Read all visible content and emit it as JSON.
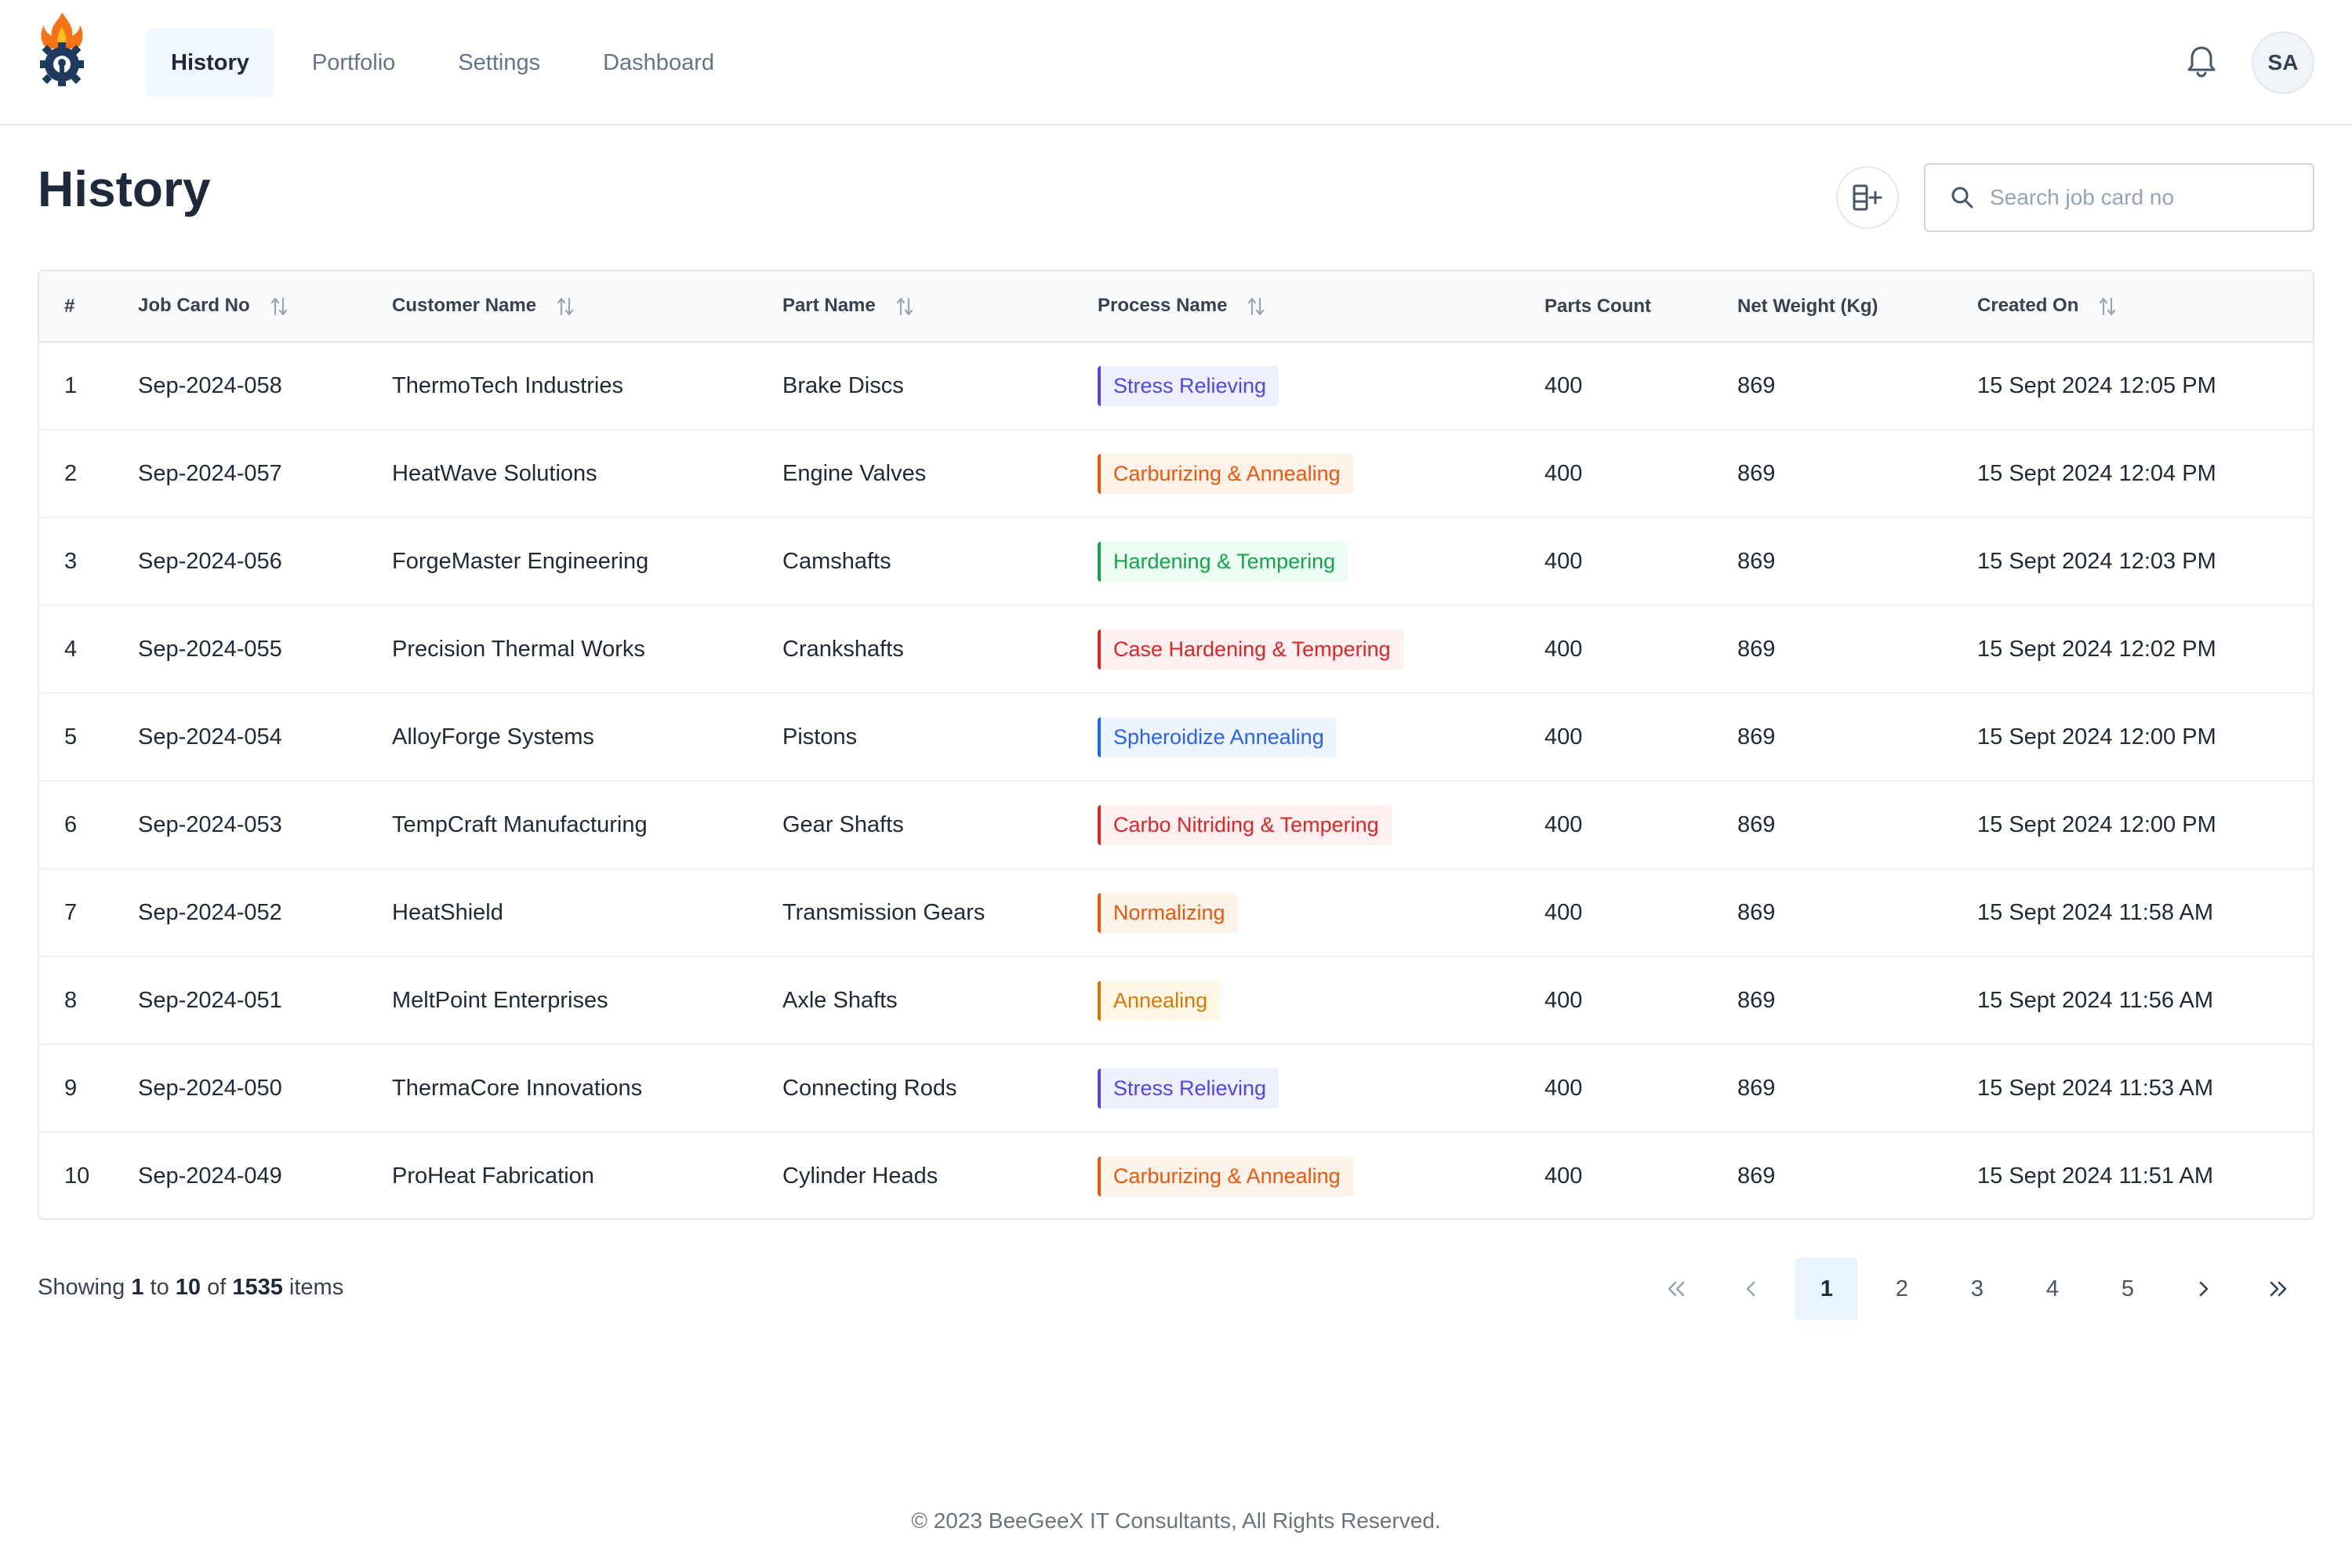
{
  "nav": {
    "items": [
      {
        "label": "History",
        "active": true
      },
      {
        "label": "Portfolio",
        "active": false
      },
      {
        "label": "Settings",
        "active": false
      },
      {
        "label": "Dashboard",
        "active": false
      }
    ]
  },
  "user": {
    "initials": "SA"
  },
  "page": {
    "title": "History"
  },
  "search": {
    "placeholder": "Search job card no"
  },
  "table": {
    "columns": [
      "#",
      "Job Card No",
      "Customer Name",
      "Part Name",
      "Process Name",
      "Parts Count",
      "Net Weight (Kg)",
      "Created On"
    ],
    "rows": [
      {
        "num": "1",
        "job": "Sep-2024-058",
        "customer": "ThermoTech Industries",
        "part": "Brake Discs",
        "process": "Stress Relieving",
        "process_color": "blue",
        "count": "400",
        "weight": "869",
        "created": "15 Sept 2024 12:05 PM"
      },
      {
        "num": "2",
        "job": "Sep-2024-057",
        "customer": "HeatWave Solutions",
        "part": "Engine Valves",
        "process": "Carburizing & Annealing",
        "process_color": "orange",
        "count": "400",
        "weight": "869",
        "created": "15 Sept 2024 12:04 PM"
      },
      {
        "num": "3",
        "job": "Sep-2024-056",
        "customer": "ForgeMaster Engineering",
        "part": "Camshafts",
        "process": "Hardening & Tempering",
        "process_color": "green",
        "count": "400",
        "weight": "869",
        "created": "15 Sept 2024 12:03 PM"
      },
      {
        "num": "4",
        "job": "Sep-2024-055",
        "customer": "Precision Thermal Works",
        "part": "Crankshafts",
        "process": "Case Hardening & Tempering",
        "process_color": "red",
        "count": "400",
        "weight": "869",
        "created": "15 Sept 2024 12:02 PM"
      },
      {
        "num": "5",
        "job": "Sep-2024-054",
        "customer": "AlloyForge Systems",
        "part": "Pistons",
        "process": "Spheroidize Annealing",
        "process_color": "sky",
        "count": "400",
        "weight": "869",
        "created": "15 Sept 2024 12:00 PM"
      },
      {
        "num": "6",
        "job": "Sep-2024-053",
        "customer": "TempCraft Manufacturing",
        "part": "Gear Shafts",
        "process": "Carbo Nitriding & Tempering",
        "process_color": "red",
        "count": "400",
        "weight": "869",
        "created": "15 Sept 2024 12:00 PM"
      },
      {
        "num": "7",
        "job": "Sep-2024-052",
        "customer": "HeatShield",
        "part": "Transmission Gears",
        "process": "Normalizing",
        "process_color": "orange",
        "count": "400",
        "weight": "869",
        "created": "15 Sept 2024 11:58 AM"
      },
      {
        "num": "8",
        "job": "Sep-2024-051",
        "customer": "MeltPoint Enterprises",
        "part": "Axle Shafts",
        "process": "Annealing",
        "process_color": "amber",
        "count": "400",
        "weight": "869",
        "created": "15 Sept 2024 11:56 AM"
      },
      {
        "num": "9",
        "job": "Sep-2024-050",
        "customer": "ThermaCore Innovations",
        "part": "Connecting Rods",
        "process": "Stress Relieving",
        "process_color": "blue",
        "count": "400",
        "weight": "869",
        "created": "15 Sept 2024 11:53 AM"
      },
      {
        "num": "10",
        "job": "Sep-2024-049",
        "customer": "ProHeat Fabrication",
        "part": "Cylinder Heads",
        "process": "Carburizing & Annealing",
        "process_color": "orange",
        "count": "400",
        "weight": "869",
        "created": "15 Sept 2024 11:51 AM"
      }
    ]
  },
  "pagination": {
    "showing_prefix": "Showing",
    "from": "1",
    "to_word": "to",
    "to": "10",
    "of_word": "of",
    "total": "1535",
    "items_word": "items",
    "pages": [
      "1",
      "2",
      "3",
      "4",
      "5"
    ],
    "current": "1",
    "first_icon": "double-chevron-left-icon",
    "prev_icon": "chevron-left-icon",
    "next_icon": "chevron-right-icon",
    "last_icon": "double-chevron-right-icon"
  },
  "footer": {
    "copyright": "© 2023 BeeGeeX IT Consultants, All Rights Reserved."
  },
  "colors": {
    "accent_bg": "#f0f7ff",
    "brand_orange": "#f97316",
    "brand_navy": "#1e3a5f"
  }
}
